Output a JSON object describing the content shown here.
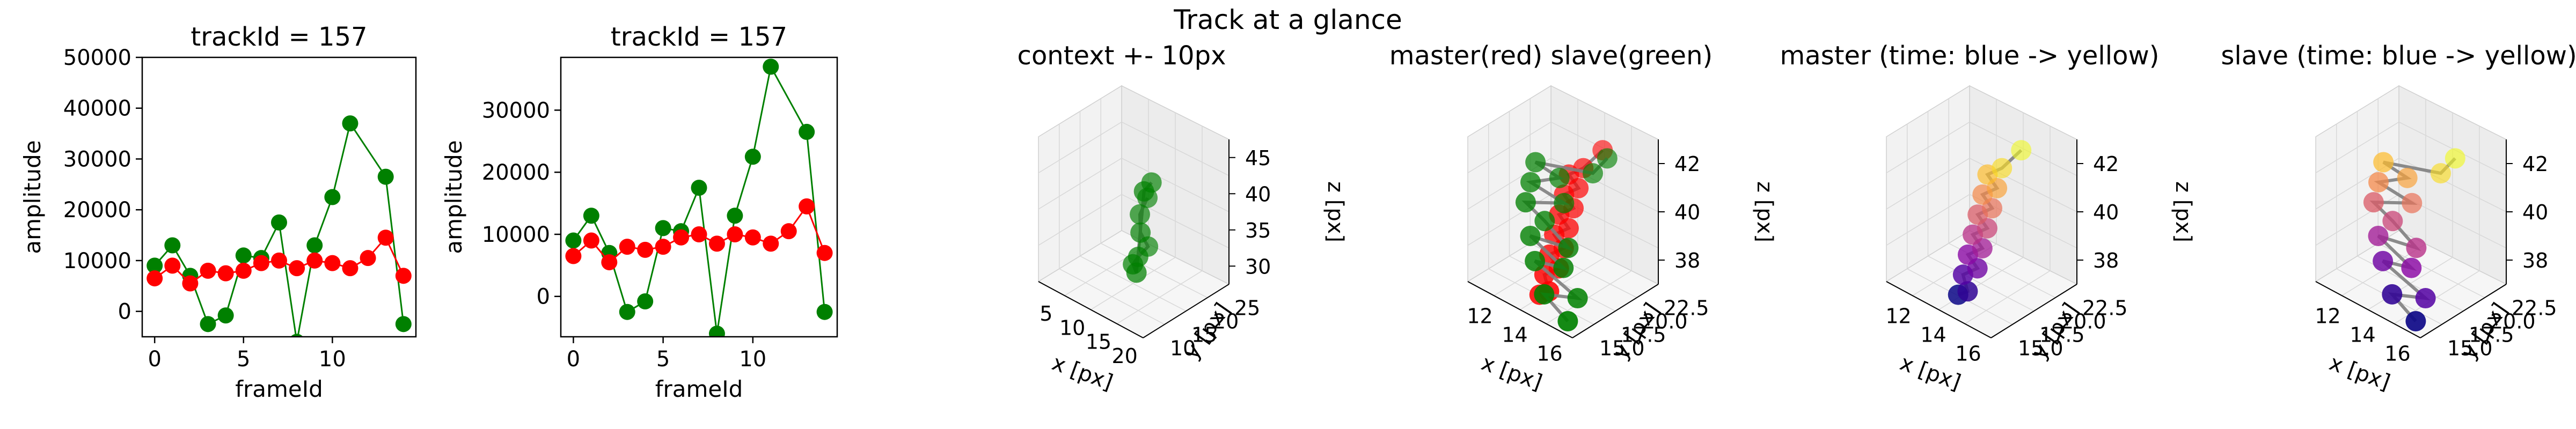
{
  "figure_title": "Track at a glance",
  "chart_data": [
    {
      "type": "line",
      "title": "trackId = 157",
      "xlabel": "frameId",
      "ylabel": "amplitude",
      "xlim": [
        -0.7,
        14.7
      ],
      "ylim": [
        -5000,
        50000
      ],
      "xticks": [
        0,
        5,
        10
      ],
      "yticks": [
        0,
        10000,
        20000,
        30000,
        40000,
        50000
      ],
      "x": [
        0,
        1,
        2,
        3,
        4,
        5,
        6,
        7,
        8,
        9,
        10,
        11,
        12,
        13,
        14
      ],
      "series": [
        {
          "color": "#008000",
          "values": [
            9000,
            13000,
            7000,
            -2500,
            -800,
            11000,
            10500,
            17500,
            -6000,
            13000,
            22500,
            37000,
            null,
            26500,
            -2500
          ]
        },
        {
          "color": "#ff0000",
          "values": [
            6500,
            9000,
            5500,
            8000,
            7500,
            8000,
            9500,
            10000,
            8500,
            10000,
            9500,
            8500,
            10500,
            14500,
            7000
          ]
        }
      ]
    },
    {
      "type": "line",
      "title": "trackId = 157",
      "xlabel": "frameId",
      "ylabel": "amplitude",
      "xlim": [
        -0.7,
        14.7
      ],
      "ylim": [
        -6500,
        38500
      ],
      "xticks": [
        0,
        5,
        10
      ],
      "yticks": [
        0,
        10000,
        20000,
        30000
      ],
      "x": [
        0,
        1,
        2,
        3,
        4,
        5,
        6,
        7,
        8,
        9,
        10,
        11,
        12,
        13,
        14
      ],
      "series": [
        {
          "color": "#008000",
          "values": [
            9000,
            13000,
            7000,
            -2500,
            -800,
            11000,
            10500,
            17500,
            -6000,
            13000,
            22500,
            37000,
            null,
            26500,
            -2500
          ]
        },
        {
          "color": "#ff0000",
          "values": [
            6500,
            9000,
            5500,
            8000,
            7500,
            8000,
            9500,
            10000,
            8500,
            10000,
            9500,
            8500,
            10500,
            14500,
            7000
          ]
        }
      ]
    },
    {
      "type": "scatter3d",
      "title": "context +- 10px",
      "xlabel": "x [px]",
      "ylabel": "y [px]",
      "zlabel": "z [px]",
      "xticks": [
        "5",
        "10",
        "15",
        "20"
      ],
      "yticks": [
        "10",
        "15",
        "20",
        "25"
      ],
      "zticks": [
        "30",
        "35",
        "40",
        "45"
      ],
      "series": [
        {
          "name": "context",
          "color": "#008000",
          "points_xyz": [
            [
              14,
              20,
              39
            ],
            [
              13.5,
              19,
              37
            ],
            [
              14,
              18.5,
              35
            ],
            [
              14.5,
              19.5,
              33
            ],
            [
              14,
              18,
              32
            ],
            [
              13.5,
              17.5,
              31
            ],
            [
              14.5,
              17,
              30.5
            ],
            [
              15,
              18,
              41
            ],
            [
              15.5,
              19,
              42
            ]
          ]
        }
      ]
    },
    {
      "type": "scatter3d",
      "title": "master(red) slave(green)",
      "xlabel": "x [px]",
      "ylabel": "y [px]",
      "zlabel": "z [px]",
      "xticks": [
        "12",
        "14",
        "16"
      ],
      "yticks": [
        "15.0",
        "17.5",
        "20.0",
        "22.5"
      ],
      "zticks": [
        "38",
        "40",
        "42"
      ],
      "series": [
        {
          "name": "master",
          "color": "#ff0000",
          "points_xyz": [
            [
              15.5,
              20.5,
              42.5
            ],
            [
              15,
              19.5,
              41.5
            ],
            [
              14.5,
              19,
              41
            ],
            [
              15,
              19,
              40.5
            ],
            [
              14.5,
              18.5,
              40
            ],
            [
              15,
              18.5,
              39.5
            ],
            [
              14.5,
              18,
              39
            ],
            [
              15,
              18,
              38.5
            ],
            [
              14.5,
              17.5,
              38
            ],
            [
              15,
              17.5,
              37.5
            ],
            [
              14.5,
              17,
              37
            ],
            [
              15,
              17,
              36.5
            ],
            [
              14.5,
              16.5,
              36
            ],
            [
              15,
              16,
              35.5
            ],
            [
              14.5,
              16,
              35
            ]
          ]
        },
        {
          "name": "slave",
          "color": "#008000",
          "points_xyz": [
            [
              16,
              20,
              42.5
            ],
            [
              15.5,
              19.5,
              41.5
            ],
            [
              13,
              18.5,
              41
            ],
            [
              14,
              19,
              40.5
            ],
            [
              13,
              18,
              40
            ],
            [
              14.5,
              18.5,
              39.5
            ],
            [
              13,
              17.5,
              39
            ],
            [
              14,
              17.5,
              38.5
            ],
            [
              15.5,
              17,
              38
            ],
            [
              13.5,
              17,
              37.5
            ],
            [
              15.5,
              16.5,
              37
            ],
            [
              14,
              16.5,
              36.5
            ],
            [
              16.5,
              16,
              36
            ],
            [
              15,
              15.5,
              35.5
            ],
            [
              16.5,
              15,
              35
            ]
          ]
        }
      ]
    },
    {
      "type": "scatter3d",
      "title": "master (time: blue -> yellow)",
      "xlabel": "x [px]",
      "ylabel": "y [px]",
      "zlabel": "z [px]",
      "xticks": [
        "12",
        "14",
        "16"
      ],
      "yticks": [
        "15.0",
        "17.5",
        "20.0",
        "22.5"
      ],
      "zticks": [
        "38",
        "40",
        "42"
      ],
      "series": [
        {
          "name": "master",
          "colormap": "plasma",
          "points_xyz": [
            [
              14.5,
              16,
              35
            ],
            [
              15,
              16,
              35.5
            ],
            [
              14.5,
              16.5,
              36
            ],
            [
              15,
              17,
              36.5
            ],
            [
              14.5,
              17,
              37
            ],
            [
              15,
              17.5,
              37.5
            ],
            [
              14.5,
              17.5,
              38
            ],
            [
              15,
              18,
              38.5
            ],
            [
              14.5,
              18,
              39
            ],
            [
              15,
              18.5,
              39.5
            ],
            [
              14.5,
              18.5,
              40
            ],
            [
              15,
              19,
              40.5
            ],
            [
              14.5,
              19,
              41
            ],
            [
              15,
              19.5,
              41.5
            ],
            [
              15.5,
              20.5,
              42.5
            ]
          ]
        }
      ]
    },
    {
      "type": "scatter3d",
      "title": "slave (time: blue -> yellow)",
      "xlabel": "x [px]",
      "ylabel": "y [px]",
      "zlabel": "z [px]",
      "xticks": [
        "12",
        "14",
        "16"
      ],
      "yticks": [
        "15.0",
        "17.5",
        "20.0",
        "22.5"
      ],
      "zticks": [
        "38",
        "40",
        "42"
      ],
      "series": [
        {
          "name": "slave",
          "colormap": "plasma",
          "points_xyz": [
            [
              16.5,
              15,
              35
            ],
            [
              15,
              15.5,
              35.5
            ],
            [
              16.5,
              16,
              36
            ],
            [
              14,
              16.5,
              36.5
            ],
            [
              15.5,
              16.5,
              37
            ],
            [
              13.5,
              17,
              37.5
            ],
            [
              15.5,
              17,
              38
            ],
            [
              14,
              17.5,
              38.5
            ],
            [
              13,
              17.5,
              39
            ],
            [
              14.5,
              18.5,
              39.5
            ],
            [
              13,
              18,
              40
            ],
            [
              14,
              19,
              40.5
            ],
            [
              13,
              18.5,
              41
            ],
            [
              15.5,
              19.5,
              41.5
            ],
            [
              16,
              20,
              42.5
            ]
          ]
        }
      ]
    }
  ]
}
